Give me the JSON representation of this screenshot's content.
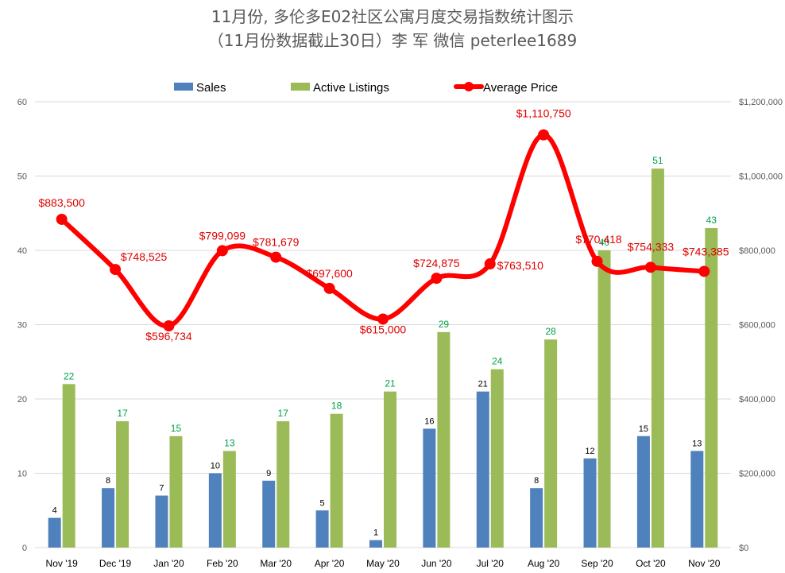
{
  "title": {
    "line1": "11月份, 多伦多E02社区公寓月度交易指数统计图示",
    "line2": "（11月份数据截止30日）李 军  微信  peterlee1689"
  },
  "colors": {
    "sales": "#4F81BD",
    "listings": "#9BBB59",
    "price": "#FF0000",
    "listings_label": "#00A04A",
    "price_label": "#E00000",
    "grid": "#D9D9D9",
    "axis_text": "#595959"
  },
  "chart_data": {
    "type": "bar+line",
    "title": "11月份, 多伦多E02社区公寓月度交易指数统计图示",
    "categories": [
      "Nov '19",
      "Dec '19",
      "Jan '20",
      "Feb '20",
      "Mar '20",
      "Apr '20",
      "May '20",
      "Jun '20",
      "Jul '20",
      "Aug '20",
      "Sep '20",
      "Oct '20",
      "Nov '20"
    ],
    "series": [
      {
        "name": "Sales",
        "type": "bar",
        "axis": "left",
        "values": [
          4,
          8,
          7,
          10,
          9,
          5,
          1,
          16,
          21,
          8,
          12,
          15,
          13
        ]
      },
      {
        "name": "Active Listings",
        "type": "bar",
        "axis": "left",
        "values": [
          22,
          17,
          15,
          13,
          17,
          18,
          21,
          29,
          24,
          28,
          40,
          51,
          43
        ]
      },
      {
        "name": "Average Price",
        "type": "line",
        "axis": "right",
        "values": [
          883500,
          748525,
          596734,
          799099,
          781679,
          697600,
          615000,
          724875,
          763510,
          1110750,
          770418,
          754333,
          743385
        ],
        "labels": [
          "$883,500",
          "$748,525",
          "$596,734",
          "$799,099",
          "$781,679",
          "$697,600",
          "$615,000",
          "$724,875",
          "$763,510",
          "$1,110,750",
          "$770,418",
          "$754,333",
          "$743,385"
        ]
      }
    ],
    "ylim_left": [
      0,
      60
    ],
    "yticks_left": [
      "0",
      "10",
      "20",
      "30",
      "40",
      "50",
      "60"
    ],
    "ylim_right": [
      0,
      1200000
    ],
    "yticks_right": [
      "$0",
      "$200,000",
      "$400,000",
      "$600,000",
      "$800,000",
      "$1,000,000",
      "$1,200,000"
    ],
    "legend": [
      "Sales",
      "Active Listings",
      "Average Price"
    ],
    "legend_position": "top",
    "grid": true
  }
}
